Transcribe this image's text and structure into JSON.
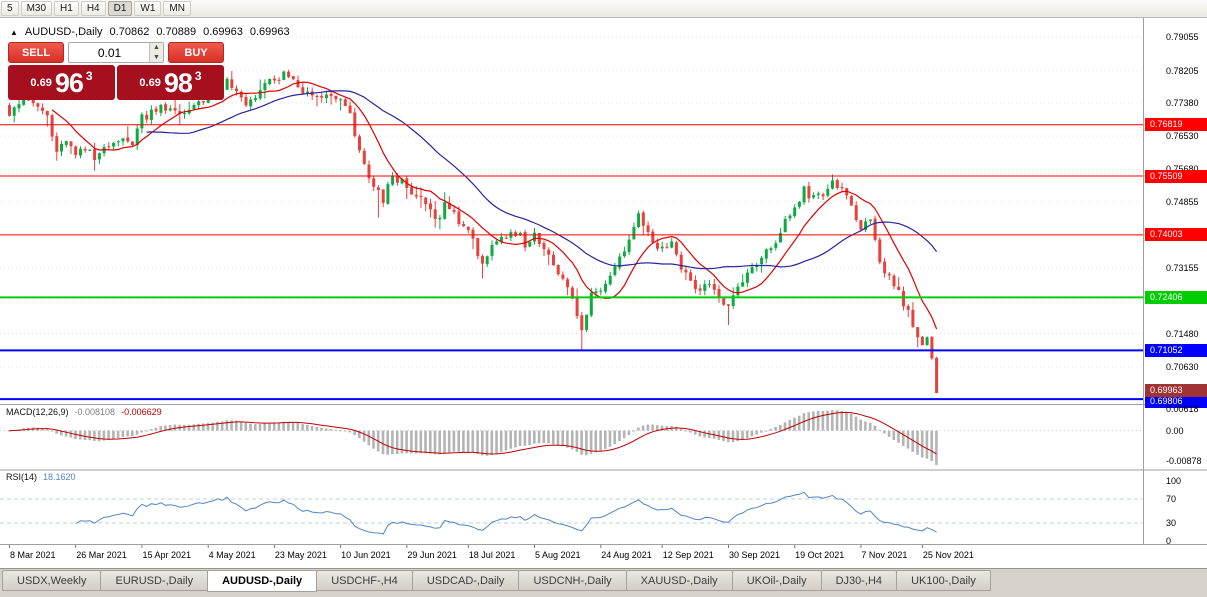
{
  "toolbar": {
    "timeframes": [
      "5",
      "M30",
      "H1",
      "H4",
      "D1",
      "W1",
      "MN"
    ],
    "active_timeframe": "D1"
  },
  "quote": {
    "collapse_icon": "▲",
    "symbol_label": "AUDUSD-,Daily",
    "open": "0.70862",
    "high": "0.70889",
    "low": "0.69963",
    "close": "0.69963"
  },
  "trade_panel": {
    "sell_label": "SELL",
    "buy_label": "BUY",
    "volume": "0.01",
    "sell_price": {
      "prefix": "0.69",
      "big": "96",
      "sup": "3"
    },
    "buy_price": {
      "prefix": "0.69",
      "big": "98",
      "sup": "3"
    }
  },
  "chart_data": {
    "type": "candlestick",
    "symbol": "AUDUSD-",
    "timeframe": "Daily",
    "grid": "dotted-horizontal",
    "y_axis": {
      "ticks": [
        "0.79055",
        "0.78205",
        "0.77380",
        "0.76530",
        "0.75680",
        "0.74855",
        "0.74005",
        "0.73155",
        "0.72330",
        "0.71480",
        "0.70630"
      ],
      "range_top": 0.7955,
      "range_bottom": 0.6968
    },
    "x_axis": {
      "labels": [
        "8 Mar 2021",
        "26 Mar 2021",
        "15 Apr 2021",
        "4 May 2021",
        "23 May 2021",
        "10 Jun 2021",
        "29 Jun 2021",
        "18 Jul 2021",
        "5 Aug 2021",
        "24 Aug 2021",
        "12 Sep 2021",
        "30 Sep 2021",
        "19 Oct 2021",
        "7 Nov 2021",
        "25 Nov 2021"
      ],
      "label_candle_indices": [
        0,
        14,
        28,
        42,
        56,
        70,
        84,
        97,
        111,
        125,
        138,
        152,
        166,
        180,
        193
      ]
    },
    "horizontal_levels": [
      {
        "price": 0.76819,
        "label": "0.76819",
        "color": "#ff0000",
        "width": 1
      },
      {
        "price": 0.75509,
        "label": "0.75509",
        "color": "#ff0000",
        "width": 1
      },
      {
        "price": 0.74003,
        "label": "0.74003",
        "color": "#ff0000",
        "width": 1
      },
      {
        "price": 0.72406,
        "label": "0.72406",
        "color": "#00cd00",
        "width": 2
      },
      {
        "price": 0.71052,
        "label": "0.71052",
        "color": "#0000ff",
        "width": 2
      },
      {
        "price": 0.69806,
        "label": "0.69806",
        "color": "#0000ff",
        "width": 2
      }
    ],
    "current_price_marker": {
      "label": "0.69963",
      "price": 0.69963,
      "color": "#a03333"
    },
    "candles": {
      "count": 197,
      "up_color": "#0caa41",
      "down_color": "#e8403a",
      "path_anchors": [
        [
          0,
          0.772
        ],
        [
          2,
          0.7738
        ],
        [
          4,
          0.7745
        ],
        [
          6,
          0.7726
        ],
        [
          8,
          0.7705
        ],
        [
          10,
          0.7605
        ],
        [
          12,
          0.7645
        ],
        [
          14,
          0.76
        ],
        [
          16,
          0.7618
        ],
        [
          18,
          0.7592
        ],
        [
          20,
          0.7625
        ],
        [
          22,
          0.765
        ],
        [
          24,
          0.7635
        ],
        [
          26,
          0.7642
        ],
        [
          28,
          0.77
        ],
        [
          30,
          0.7718
        ],
        [
          32,
          0.7735
        ],
        [
          34,
          0.772
        ],
        [
          36,
          0.7705
        ],
        [
          38,
          0.7722
        ],
        [
          40,
          0.7745
        ],
        [
          42,
          0.775
        ],
        [
          44,
          0.7768
        ],
        [
          46,
          0.7785
        ],
        [
          48,
          0.776
        ],
        [
          50,
          0.7735
        ],
        [
          52,
          0.7762
        ],
        [
          54,
          0.7785
        ],
        [
          56,
          0.7792
        ],
        [
          58,
          0.7805
        ],
        [
          60,
          0.7788
        ],
        [
          62,
          0.7768
        ],
        [
          64,
          0.7752
        ],
        [
          66,
          0.7755
        ],
        [
          68,
          0.7748
        ],
        [
          70,
          0.7742
        ],
        [
          72,
          0.7705
        ],
        [
          74,
          0.7608
        ],
        [
          77,
          0.7522
        ],
        [
          79,
          0.7488
        ],
        [
          81,
          0.756
        ],
        [
          83,
          0.7535
        ],
        [
          84,
          0.7512
        ],
        [
          86,
          0.7495
        ],
        [
          88,
          0.7482
        ],
        [
          90,
          0.7432
        ],
        [
          92,
          0.748
        ],
        [
          95,
          0.7445
        ],
        [
          97,
          0.7402
        ],
        [
          100,
          0.7332
        ],
        [
          102,
          0.7365
        ],
        [
          105,
          0.7392
        ],
        [
          107,
          0.7402
        ],
        [
          109,
          0.7382
        ],
        [
          111,
          0.7398
        ],
        [
          114,
          0.7352
        ],
        [
          117,
          0.7292
        ],
        [
          119,
          0.7232
        ],
        [
          121,
          0.7152
        ],
        [
          123,
          0.7252
        ],
        [
          125,
          0.7255
        ],
        [
          127,
          0.7302
        ],
        [
          130,
          0.7372
        ],
        [
          133,
          0.7452
        ],
        [
          136,
          0.7385
        ],
        [
          138,
          0.7362
        ],
        [
          140,
          0.7382
        ],
        [
          142,
          0.7322
        ],
        [
          144,
          0.7282
        ],
        [
          146,
          0.7252
        ],
        [
          148,
          0.7282
        ],
        [
          150,
          0.7235
        ],
        [
          152,
          0.7222
        ],
        [
          154,
          0.7262
        ],
        [
          156,
          0.7302
        ],
        [
          158,
          0.7322
        ],
        [
          160,
          0.7352
        ],
        [
          162,
          0.7385
        ],
        [
          164,
          0.7432
        ],
        [
          166,
          0.7472
        ],
        [
          168,
          0.752
        ],
        [
          170,
          0.7492
        ],
        [
          172,
          0.7502
        ],
        [
          174,
          0.7532
        ],
        [
          176,
          0.7518
        ],
        [
          178,
          0.7482
        ],
        [
          180,
          0.7405
        ],
        [
          182,
          0.7432
        ],
        [
          184,
          0.7332
        ],
        [
          186,
          0.7292
        ],
        [
          188,
          0.7255
        ],
        [
          190,
          0.7205
        ],
        [
          192,
          0.7135
        ],
        [
          193,
          0.7125
        ],
        [
          194,
          0.7142
        ],
        [
          195,
          0.7085
        ],
        [
          196,
          0.69963
        ]
      ],
      "key_candles": [
        {
          "i": 58,
          "h": 0.782
        },
        {
          "i": 78,
          "l": 0.7445
        },
        {
          "i": 100,
          "l": 0.7289
        },
        {
          "i": 121,
          "l": 0.7106
        },
        {
          "i": 152,
          "l": 0.717
        },
        {
          "i": 174,
          "h": 0.7555
        },
        {
          "i": 192,
          "l": 0.7113
        },
        {
          "i": 196,
          "o": 0.70862,
          "h": 0.70889,
          "l": 0.69963,
          "c": 0.69963
        }
      ]
    },
    "moving_averages": [
      {
        "period": 10,
        "color": "#e00000"
      },
      {
        "period": 30,
        "color": "#24249e"
      }
    ],
    "indicators": [
      {
        "name": "MACD",
        "label": "MACD(12,26,9)",
        "params": [
          12,
          26,
          9
        ],
        "value_main": "-0.008108",
        "value_signal": "-0.006629",
        "axis_labels": [
          "0.00618",
          "0.00",
          "-0.00878"
        ],
        "histogram_color": "#b4b4b4",
        "signal_color": "#c00000"
      },
      {
        "name": "RSI",
        "label": "RSI(14)",
        "params": [
          14
        ],
        "value": "18.1620",
        "axis_labels": [
          "100",
          "70",
          "30",
          "0"
        ],
        "level_lines": [
          70,
          30
        ],
        "line_color": "#4f87c5"
      }
    ]
  },
  "tab_bar": {
    "tabs": [
      "USDX,Weekly",
      "EURUSD-,Daily",
      "AUDUSD-,Daily",
      "USDCHF-,H4",
      "USDCAD-,Daily",
      "USDCNH-,Daily",
      "XAUUSD-,Daily",
      "UKOil-,Daily",
      "DJ30-,H4",
      "UK100-,Daily"
    ],
    "active_tab": "AUDUSD-,Daily"
  }
}
